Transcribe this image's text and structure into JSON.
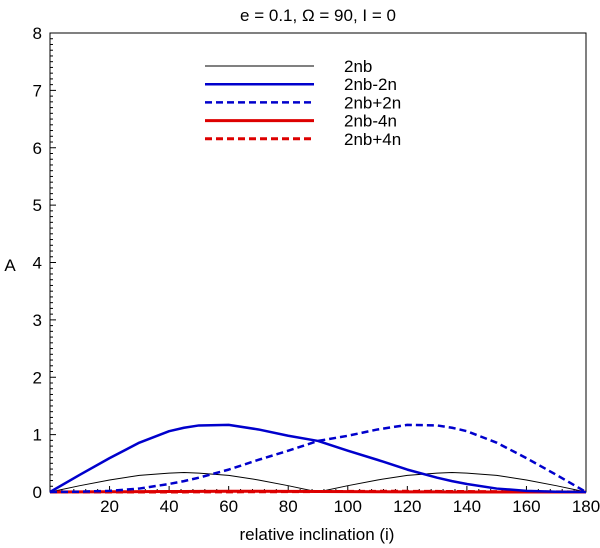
{
  "chart_data": {
    "type": "line",
    "title": "e = 0.1, Ω = 90, I = 0",
    "xlabel": "relative inclination (i)",
    "ylabel": "A",
    "xlim": [
      0,
      180
    ],
    "ylim": [
      0,
      8
    ],
    "x_ticks": [
      20,
      40,
      60,
      80,
      100,
      120,
      140,
      160,
      180
    ],
    "y_ticks": [
      0,
      1,
      2,
      3,
      4,
      5,
      6,
      7,
      8
    ],
    "x_tick_labels": [
      "20",
      "40",
      "60",
      "80",
      "100",
      "120",
      "140",
      "160",
      "180"
    ],
    "y_tick_labels": [
      "0",
      "1",
      "2",
      "3",
      "4",
      "5",
      "6",
      "7",
      "8"
    ],
    "legend_position": "top-center",
    "grid": false,
    "x": [
      0,
      10,
      20,
      30,
      40,
      45,
      50,
      60,
      70,
      80,
      90,
      100,
      110,
      120,
      130,
      135,
      140,
      150,
      160,
      170,
      180
    ],
    "series": [
      {
        "name": "2nb",
        "color": "#000000",
        "dash": "solid",
        "width": 1,
        "values": [
          0,
          0.11,
          0.21,
          0.29,
          0.33,
          0.34,
          0.33,
          0.29,
          0.21,
          0.11,
          0,
          0.11,
          0.21,
          0.29,
          0.33,
          0.34,
          0.33,
          0.29,
          0.21,
          0.11,
          0
        ]
      },
      {
        "name": "2nb-2n",
        "color": "#0000cc",
        "dash": "solid",
        "width": 2.5,
        "values": [
          0,
          0.3,
          0.59,
          0.86,
          1.06,
          1.12,
          1.16,
          1.17,
          1.09,
          0.98,
          0.89,
          0.72,
          0.56,
          0.39,
          0.25,
          0.19,
          0.14,
          0.06,
          0.02,
          0.005,
          0
        ]
      },
      {
        "name": "2nb+2n",
        "color": "#0000cc",
        "dash": "dashed",
        "width": 2.5,
        "values": [
          0,
          0.005,
          0.02,
          0.06,
          0.14,
          0.19,
          0.25,
          0.39,
          0.56,
          0.72,
          0.89,
          0.98,
          1.09,
          1.17,
          1.16,
          1.12,
          1.06,
          0.86,
          0.59,
          0.3,
          0
        ]
      },
      {
        "name": "2nb-4n",
        "color": "#dd0000",
        "dash": "solid",
        "width": 3,
        "values": [
          0,
          0.002,
          0.004,
          0.006,
          0.008,
          0.009,
          0.01,
          0.012,
          0.012,
          0.01,
          0.008,
          0.006,
          0.004,
          0.003,
          0.002,
          0.001,
          0.001,
          0.0,
          0.0,
          0.0,
          0
        ]
      },
      {
        "name": "2nb+4n",
        "color": "#dd0000",
        "dash": "dashed",
        "width": 3,
        "values": [
          0,
          0.0,
          0.0,
          0.0,
          0.001,
          0.001,
          0.002,
          0.003,
          0.004,
          0.006,
          0.008,
          0.01,
          0.012,
          0.012,
          0.01,
          0.009,
          0.008,
          0.006,
          0.004,
          0.002,
          0
        ]
      }
    ]
  }
}
